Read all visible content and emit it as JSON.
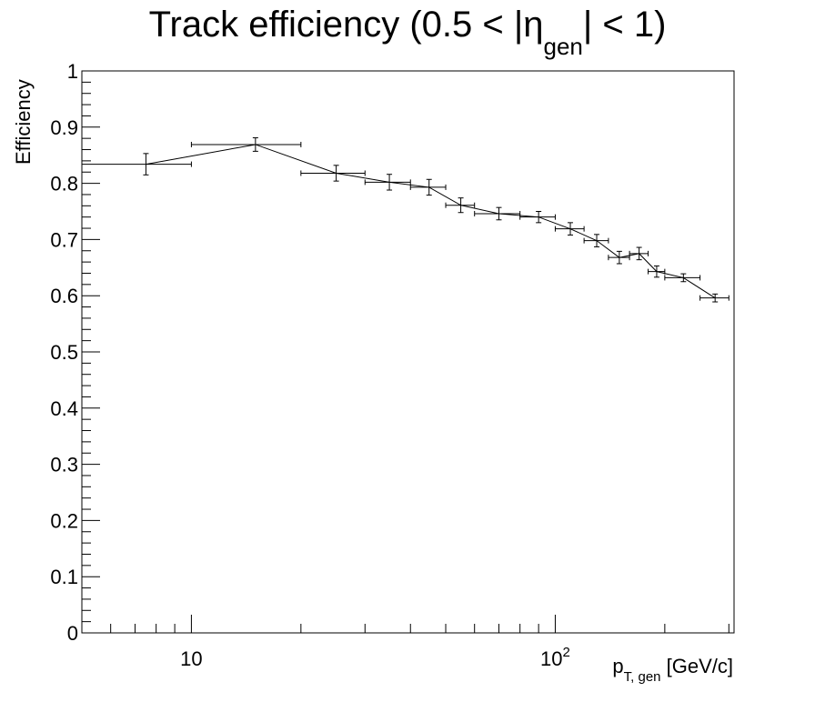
{
  "chart_data": {
    "type": "scatter",
    "title": {
      "main": "Track efficiency (0.5 < |",
      "symbol": "η",
      "subscript": "gen",
      "tail": "| < 1)"
    },
    "xlabel": {
      "main": "p",
      "subscript": "T, gen",
      "tail": " [GeV/c]"
    },
    "ylabel": "Efficiency",
    "x_scale": "log",
    "xlim": [
      5,
      310
    ],
    "ylim": [
      0,
      1
    ],
    "y_ticks": [
      "0",
      "0.1",
      "0.2",
      "0.3",
      "0.4",
      "0.5",
      "0.6",
      "0.7",
      "0.8",
      "0.9",
      "1"
    ],
    "x_tick_labels": [
      {
        "value": 10,
        "base": "10",
        "exponent": ""
      },
      {
        "value": 100,
        "base": "10",
        "exponent": "2"
      }
    ],
    "grid": false,
    "connected": true,
    "series": [
      {
        "points": [
          {
            "x": 7.5,
            "xlo": 5,
            "xhi": 10,
            "y": 0.834,
            "err": 0.019
          },
          {
            "x": 15,
            "xlo": 10,
            "xhi": 20,
            "y": 0.869,
            "err": 0.012
          },
          {
            "x": 25,
            "xlo": 20,
            "xhi": 30,
            "y": 0.818,
            "err": 0.014
          },
          {
            "x": 35,
            "xlo": 30,
            "xhi": 40,
            "y": 0.802,
            "err": 0.014
          },
          {
            "x": 45,
            "xlo": 40,
            "xhi": 50,
            "y": 0.793,
            "err": 0.014
          },
          {
            "x": 55,
            "xlo": 50,
            "xhi": 60,
            "y": 0.761,
            "err": 0.013
          },
          {
            "x": 70,
            "xlo": 60,
            "xhi": 80,
            "y": 0.746,
            "err": 0.011
          },
          {
            "x": 90,
            "xlo": 80,
            "xhi": 100,
            "y": 0.74,
            "err": 0.01
          },
          {
            "x": 110,
            "xlo": 100,
            "xhi": 120,
            "y": 0.719,
            "err": 0.011
          },
          {
            "x": 130,
            "xlo": 120,
            "xhi": 140,
            "y": 0.698,
            "err": 0.011
          },
          {
            "x": 150,
            "xlo": 140,
            "xhi": 160,
            "y": 0.668,
            "err": 0.011
          },
          {
            "x": 170,
            "xlo": 160,
            "xhi": 180,
            "y": 0.675,
            "err": 0.011
          },
          {
            "x": 190,
            "xlo": 180,
            "xhi": 200,
            "y": 0.643,
            "err": 0.01
          },
          {
            "x": 225,
            "xlo": 200,
            "xhi": 250,
            "y": 0.632,
            "err": 0.007
          },
          {
            "x": 275,
            "xlo": 250,
            "xhi": 300,
            "y": 0.596,
            "err": 0.007
          }
        ]
      }
    ]
  }
}
